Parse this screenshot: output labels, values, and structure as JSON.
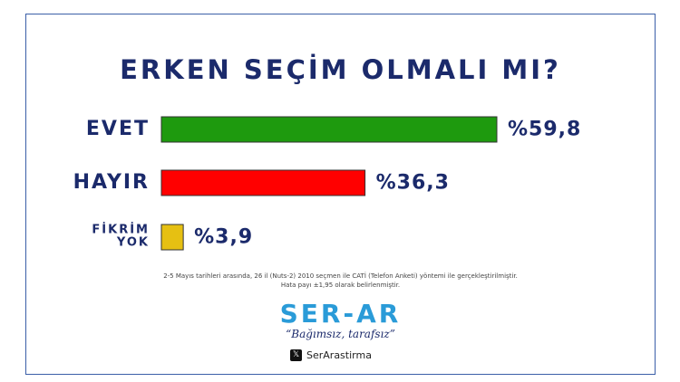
{
  "chart_data": {
    "type": "bar",
    "orientation": "horizontal",
    "title": "ERKEN SEÇİM OLMALI MI?",
    "categories": [
      "EVET",
      "HAYIR",
      "FİKRİM YOK"
    ],
    "values": [
      59.8,
      36.3,
      3.9
    ],
    "value_labels": [
      "%59,8",
      "%36,3",
      "%3,9"
    ],
    "colors": [
      "#1e9a0e",
      "#ff0000",
      "#e6c012"
    ],
    "notes": [
      "2-5 Mayıs tarihleri arasında, 26 il (Nuts-2) 2010 seçmen ile CATİ (Telefon Anketi) yöntemi ile gerçekleştirilmiştir.",
      "Hata payı ±1,95 olarak belirlenmiştir."
    ],
    "brand": "SER-AR",
    "tagline": "“Bağımsız, tarafsız”",
    "handle": "SerArastirma"
  }
}
